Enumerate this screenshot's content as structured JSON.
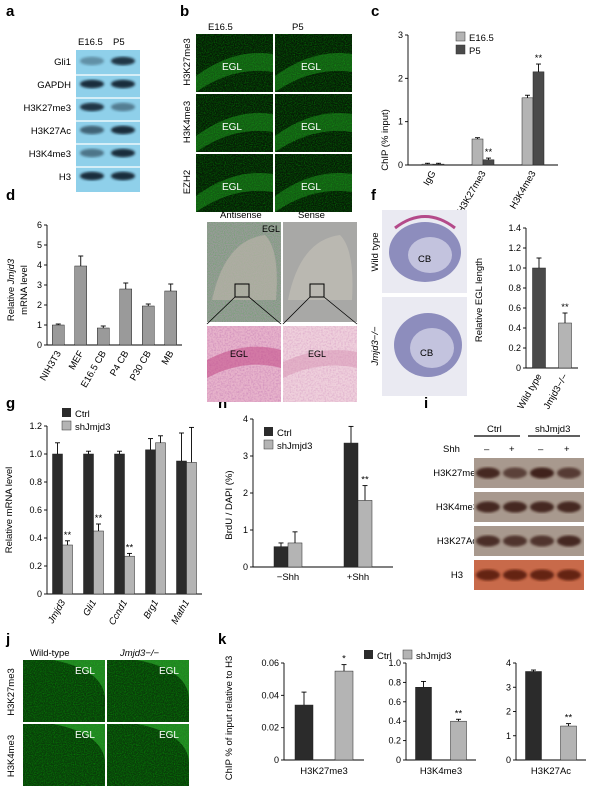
{
  "panel_letters": [
    "a",
    "b",
    "c",
    "d",
    "e",
    "f",
    "g",
    "h",
    "i",
    "j",
    "k"
  ],
  "colors": {
    "ctrl": "#2b2b2b",
    "sh": "#b4b4b4",
    "e165": "#b4b4b4",
    "p5": "#4a4a4a",
    "blot_bg": "#8fd0ea",
    "fluor": "#1aa81a"
  },
  "a": {
    "columns": [
      "E16.5",
      "P5"
    ],
    "rows": [
      "Gli1",
      "GAPDH",
      "H3K27me3",
      "H3K27Ac",
      "H3K4me3",
      "H3"
    ]
  },
  "b": {
    "columns": [
      "E16.5",
      "P5"
    ],
    "rows": [
      "H3K27me3",
      "H3K4me3",
      "EZH2"
    ],
    "region": "EGL"
  },
  "c": {
    "ylabel": "ChIP (% input)",
    "legend": [
      "E16.5",
      "P5"
    ],
    "sig": "**"
  },
  "d": {
    "ylabel_pre": "Relative ",
    "ylabel_gene": "Jmjd3",
    "ylabel_post": "mRNA level"
  },
  "e": {
    "columns": [
      "Antisense",
      "Sense"
    ],
    "region": "EGL"
  },
  "f": {
    "rows": [
      "Wild type",
      "Jmjd3−/−"
    ],
    "region": "CB",
    "ylabel": "Relative EGL length",
    "sig": "**"
  },
  "g": {
    "ylabel": "Relative mRNA level",
    "legend": [
      "Ctrl",
      "shJmjd3"
    ],
    "sig": "**"
  },
  "h": {
    "ylabel": "BrdU / DAPI (%)",
    "legend": [
      "Ctrl",
      "shJmjd3"
    ],
    "sig": "**"
  },
  "i": {
    "groups": [
      "Ctrl",
      "shJmjd3"
    ],
    "shh_label": "Shh",
    "shh_signs": [
      "–",
      "+",
      "–",
      "+"
    ],
    "rows": [
      "H3K27me3",
      "H3K4me3",
      "H3K27Ac",
      "H3"
    ]
  },
  "j": {
    "columns": [
      "Wild-type",
      "Jmjd3−/−"
    ],
    "rows": [
      "H3K27me3",
      "H3K4me3"
    ],
    "region": "EGL"
  },
  "k": {
    "legend": [
      "Ctrl",
      "shJmjd3"
    ],
    "ylabel": "ChIP % of input relative to H3"
  },
  "chart_data": [
    {
      "id": "c",
      "type": "bar",
      "categories": [
        "IgG",
        "H3K27me3",
        "H3K4me3"
      ],
      "series": [
        {
          "name": "E16.5",
          "values": [
            0.02,
            0.6,
            1.55
          ],
          "errors": [
            0.02,
            0.03,
            0.06
          ]
        },
        {
          "name": "P5",
          "values": [
            0.02,
            0.12,
            2.15
          ],
          "errors": [
            0.02,
            0.04,
            0.18
          ]
        }
      ],
      "ylim": [
        0,
        3
      ],
      "yticks": [
        0,
        1,
        2,
        3
      ],
      "annotations": [
        {
          "category": "H3K27me3",
          "series": "P5",
          "text": "**"
        },
        {
          "category": "H3K4me3",
          "series": "P5",
          "text": "**"
        }
      ]
    },
    {
      "id": "d",
      "type": "bar",
      "categories": [
        "NIH3T3",
        "MEF",
        "E16.5 CB",
        "P4 CB",
        "P30 CB",
        "MB"
      ],
      "values": [
        1.0,
        3.95,
        0.85,
        2.8,
        1.95,
        2.7
      ],
      "errors": [
        0.05,
        0.5,
        0.1,
        0.3,
        0.1,
        0.35
      ],
      "ylim": [
        0,
        6
      ],
      "yticks": [
        0,
        1,
        2,
        3,
        4,
        5,
        6
      ]
    },
    {
      "id": "f",
      "type": "bar",
      "categories": [
        "Wild type",
        "Jmjd3−/−"
      ],
      "values": [
        1.0,
        0.45
      ],
      "errors": [
        0.1,
        0.1
      ],
      "ylim": [
        0,
        1.4
      ],
      "yticks": [
        "0",
        "0.2",
        "0.4",
        "0.6",
        "0.8",
        "1.0",
        "1.2",
        "1.4"
      ],
      "annotations": [
        {
          "category": "Jmjd3−/−",
          "text": "**"
        }
      ]
    },
    {
      "id": "g",
      "type": "bar",
      "categories": [
        "Jmjd3",
        "Gli1",
        "Ccnd1",
        "Brg1",
        "Math1"
      ],
      "series": [
        {
          "name": "Ctrl",
          "values": [
            1.0,
            1.0,
            1.0,
            1.03,
            0.95
          ],
          "errors": [
            0.08,
            0.02,
            0.02,
            0.08,
            0.2
          ]
        },
        {
          "name": "shJmjd3",
          "values": [
            0.35,
            0.45,
            0.27,
            1.08,
            0.94
          ],
          "errors": [
            0.03,
            0.05,
            0.02,
            0.05,
            0.25
          ]
        }
      ],
      "ylim": [
        0,
        1.2
      ],
      "yticks": [
        "0",
        "0.2",
        "0.4",
        "0.6",
        "0.8",
        "1.0",
        "1.2"
      ],
      "annotations": [
        {
          "category": "Jmjd3",
          "series": "shJmjd3",
          "text": "**"
        },
        {
          "category": "Gli1",
          "series": "shJmjd3",
          "text": "**"
        },
        {
          "category": "Ccnd1",
          "series": "shJmjd3",
          "text": "**"
        }
      ]
    },
    {
      "id": "h",
      "type": "bar",
      "categories": [
        "−Shh",
        "+Shh"
      ],
      "series": [
        {
          "name": "Ctrl",
          "values": [
            0.55,
            3.35
          ],
          "errors": [
            0.1,
            0.45
          ]
        },
        {
          "name": "shJmjd3",
          "values": [
            0.65,
            1.8
          ],
          "errors": [
            0.3,
            0.4
          ]
        }
      ],
      "ylim": [
        0,
        4
      ],
      "yticks": [
        0,
        1,
        2,
        3,
        4
      ],
      "annotations": [
        {
          "category": "+Shh",
          "series": "shJmjd3",
          "text": "**"
        }
      ]
    },
    {
      "id": "k1",
      "type": "bar",
      "xlabel": "H3K27me3",
      "categories": [
        "Ctrl",
        "shJmjd3"
      ],
      "values": [
        0.034,
        0.055
      ],
      "errors": [
        0.008,
        0.004
      ],
      "ylim": [
        0,
        0.06
      ],
      "yticks": [
        "0",
        "0.02",
        "0.04",
        "0.06"
      ],
      "annotations": [
        {
          "category": "shJmjd3",
          "text": "*"
        }
      ]
    },
    {
      "id": "k2",
      "type": "bar",
      "xlabel": "H3K4me3",
      "categories": [
        "Ctrl",
        "shJmjd3"
      ],
      "values": [
        0.75,
        0.4
      ],
      "errors": [
        0.06,
        0.02
      ],
      "ylim": [
        0,
        1.0
      ],
      "yticks": [
        "0",
        "0.2",
        "0.4",
        "0.6",
        "0.8",
        "1.0"
      ],
      "annotations": [
        {
          "category": "shJmjd3",
          "text": "**"
        }
      ]
    },
    {
      "id": "k3",
      "type": "bar",
      "xlabel": "H3K27Ac",
      "categories": [
        "Ctrl",
        "shJmjd3"
      ],
      "values": [
        3.65,
        1.4
      ],
      "errors": [
        0.06,
        0.1
      ],
      "ylim": [
        0,
        4
      ],
      "yticks": [
        0,
        1,
        2,
        3,
        4
      ],
      "annotations": [
        {
          "category": "shJmjd3",
          "text": "**"
        }
      ]
    }
  ]
}
